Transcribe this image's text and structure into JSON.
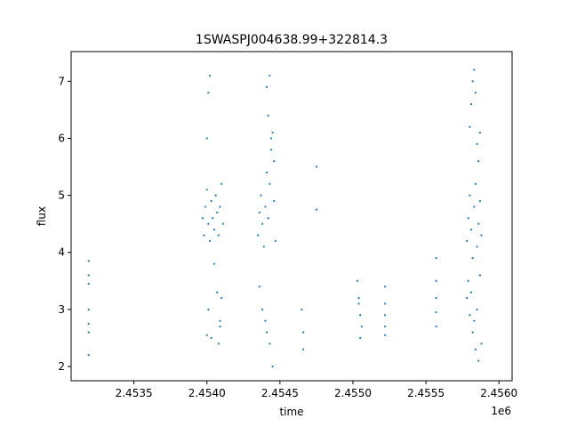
{
  "chart_data": {
    "type": "scatter",
    "title": "1SWASPJ004638.99+322814.3",
    "xlabel": "time",
    "ylabel": "flux",
    "x_offset_label": "1e6",
    "xlim": [
      2.45307,
      2.45609
    ],
    "ylim": [
      1.75,
      7.52
    ],
    "x_ticks": [
      2.4535,
      2.454,
      2.4545,
      2.455,
      2.4555,
      2.456
    ],
    "x_tick_labels": [
      "2.4535",
      "2.4540",
      "2.4545",
      "2.4550",
      "2.4555",
      "2.4560"
    ],
    "y_ticks": [
      2,
      3,
      4,
      5,
      6,
      7
    ],
    "y_tick_labels": [
      "2",
      "3",
      "4",
      "5",
      "6",
      "7"
    ],
    "grid": false,
    "marker_color": "#1f77b4",
    "series": [
      {
        "x": [
          2.45319,
          2.45319,
          2.45319,
          2.45319,
          2.45319,
          2.45319,
          2.45319,
          2.45397,
          2.45398,
          2.45399,
          2.454,
          2.45401,
          2.45402,
          2.45403,
          2.45404,
          2.45405,
          2.45406,
          2.45407,
          2.45408,
          2.45409,
          2.4541,
          2.45411,
          2.454,
          2.45401,
          2.45402,
          2.45405,
          2.45407,
          2.45409,
          2.454,
          2.45401,
          2.45403,
          2.45408,
          2.45409,
          2.4541,
          2.45435,
          2.45436,
          2.45437,
          2.45438,
          2.45439,
          2.4544,
          2.45441,
          2.45442,
          2.45443,
          2.45444,
          2.45445,
          2.45446,
          2.45447,
          2.45436,
          2.45438,
          2.4544,
          2.45441,
          2.45442,
          2.45443,
          2.45444,
          2.45446,
          2.45441,
          2.45443,
          2.45445,
          2.45465,
          2.45466,
          2.45466,
          2.45475,
          2.45475,
          2.45503,
          2.45504,
          2.45505,
          2.45506,
          2.45505,
          2.45504,
          2.45522,
          2.45522,
          2.45522,
          2.45522,
          2.45522,
          2.45557,
          2.45557,
          2.45557,
          2.45557,
          2.45557,
          2.45578,
          2.45579,
          2.4558,
          2.45581,
          2.45582,
          2.45583,
          2.45584,
          2.45585,
          2.45586,
          2.45587,
          2.45588,
          2.4558,
          2.45581,
          2.45582,
          2.45583,
          2.45584,
          2.45585,
          2.45586,
          2.45587,
          2.45578,
          2.4558,
          2.45582,
          2.45584,
          2.45586,
          2.45588,
          2.45579,
          2.45581,
          2.45583,
          2.45585,
          2.45587
        ],
        "y": [
          3.85,
          3.6,
          3.45,
          3.0,
          2.75,
          2.6,
          2.2,
          4.6,
          4.3,
          4.8,
          5.1,
          4.5,
          4.2,
          4.9,
          4.6,
          4.4,
          5.0,
          4.7,
          4.3,
          4.8,
          5.2,
          4.5,
          6.0,
          6.8,
          7.1,
          3.8,
          3.3,
          2.8,
          2.55,
          3.0,
          2.5,
          2.4,
          2.7,
          3.2,
          4.3,
          4.7,
          5.0,
          4.5,
          4.1,
          4.8,
          5.4,
          4.6,
          5.2,
          5.8,
          6.1,
          4.9,
          4.2,
          3.4,
          3.0,
          2.8,
          6.9,
          6.4,
          7.1,
          6.0,
          5.6,
          2.6,
          2.4,
          2.0,
          3.0,
          2.6,
          2.3,
          5.5,
          4.75,
          3.5,
          3.1,
          2.9,
          2.7,
          2.5,
          3.2,
          3.4,
          3.1,
          2.9,
          2.7,
          2.55,
          3.9,
          3.5,
          3.2,
          2.95,
          2.7,
          4.2,
          4.6,
          5.0,
          4.4,
          3.9,
          4.8,
          5.2,
          4.1,
          4.5,
          4.9,
          4.3,
          6.2,
          6.6,
          7.0,
          7.2,
          6.8,
          5.9,
          5.6,
          6.1,
          3.2,
          2.9,
          2.6,
          2.3,
          2.1,
          2.4,
          3.5,
          3.3,
          2.8,
          3.0,
          3.6
        ]
      }
    ]
  }
}
